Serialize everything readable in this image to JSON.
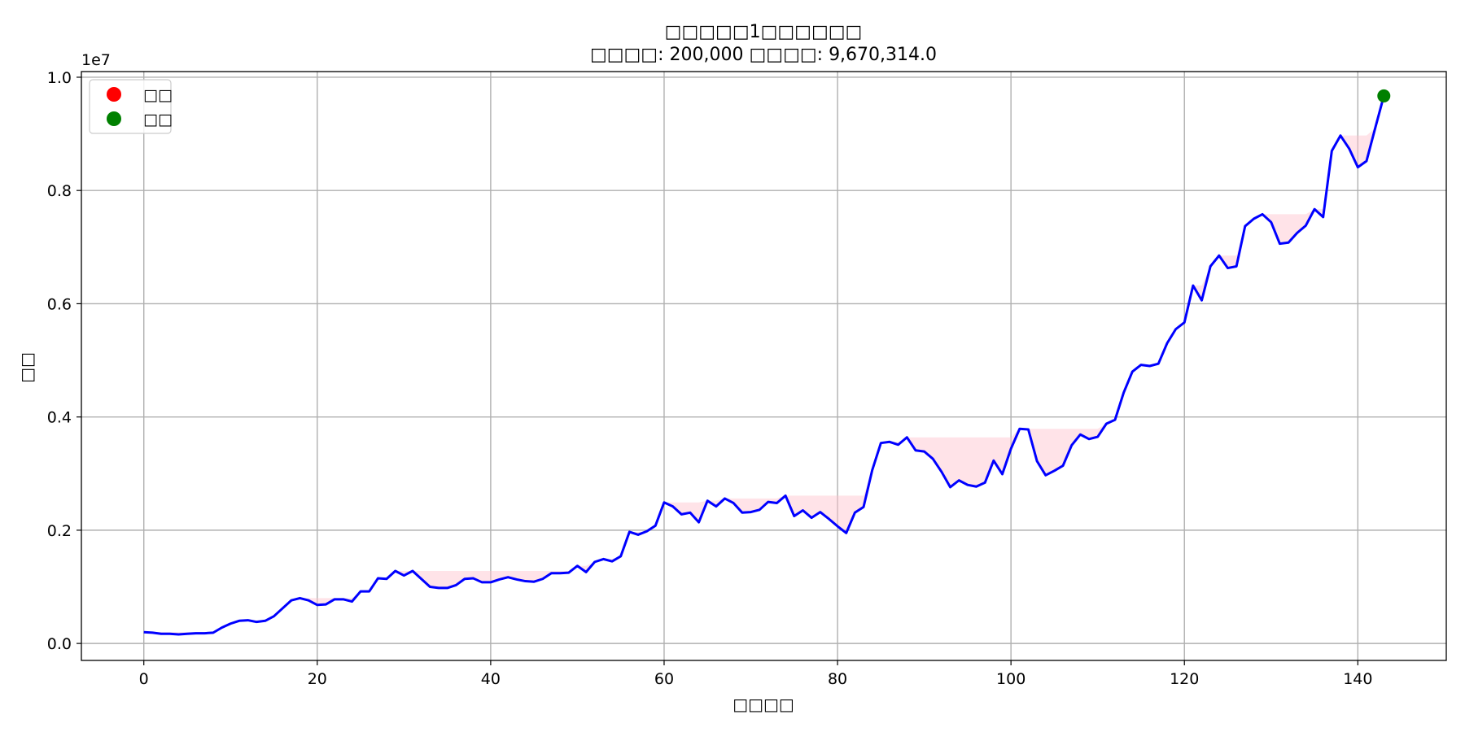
{
  "chart_data": {
    "type": "line",
    "title": "□□□□□1□□□□□□",
    "subtitle_parts": {
      "initial_label": "□□□□",
      "initial_value": "200,000",
      "final_label": "□□□□",
      "final_value": "9,670,314.0"
    },
    "xlabel": "□□□□",
    "ylabel": "□□",
    "y_offset_text": "1e7",
    "xlim": [
      -7.2,
      150.2
    ],
    "ylim": [
      -0.03,
      1.01
    ],
    "x_ticks": [
      0,
      20,
      40,
      60,
      80,
      100,
      120,
      140
    ],
    "x_tick_labels": [
      "0",
      "20",
      "40",
      "60",
      "80",
      "100",
      "120",
      "140"
    ],
    "y_ticks": [
      0.0,
      0.2,
      0.4,
      0.6,
      0.8,
      1.0
    ],
    "y_tick_labels": [
      "0.0",
      "0.2",
      "0.4",
      "0.6",
      "0.8",
      "1.0"
    ],
    "grid": true,
    "legend_position": "upper-left",
    "legend": [
      {
        "label": "□□",
        "color": "#ff0000"
      },
      {
        "label": "□□",
        "color": "#008000"
      }
    ],
    "line_color": "#0000ff",
    "drawdown_fill_color": "#ffc0cb",
    "end_marker": {
      "x": 143,
      "y": 0.967,
      "color": "#008000"
    },
    "series": [
      {
        "values": [
          0.02,
          0.019,
          0.017,
          0.017,
          0.016,
          0.017,
          0.018,
          0.018,
          0.019,
          0.028,
          0.035,
          0.04,
          0.041,
          0.038,
          0.04,
          0.048,
          0.062,
          0.076,
          0.08,
          0.076,
          0.068,
          0.069,
          0.078,
          0.078,
          0.074,
          0.092,
          0.092,
          0.115,
          0.114,
          0.128,
          0.12,
          0.128,
          0.114,
          0.1,
          0.098,
          0.098,
          0.103,
          0.114,
          0.115,
          0.108,
          0.108,
          0.113,
          0.117,
          0.113,
          0.11,
          0.109,
          0.114,
          0.124,
          0.124,
          0.125,
          0.137,
          0.126,
          0.144,
          0.149,
          0.145,
          0.154,
          0.197,
          0.192,
          0.198,
          0.208,
          0.249,
          0.242,
          0.228,
          0.231,
          0.214,
          0.252,
          0.242,
          0.256,
          0.248,
          0.231,
          0.232,
          0.236,
          0.25,
          0.248,
          0.261,
          0.225,
          0.235,
          0.222,
          0.232,
          0.22,
          0.207,
          0.195,
          0.231,
          0.241,
          0.306,
          0.354,
          0.356,
          0.351,
          0.364,
          0.341,
          0.339,
          0.326,
          0.303,
          0.276,
          0.288,
          0.28,
          0.277,
          0.284,
          0.323,
          0.299,
          0.344,
          0.379,
          0.378,
          0.322,
          0.297,
          0.305,
          0.314,
          0.35,
          0.369,
          0.361,
          0.365,
          0.388,
          0.395,
          0.443,
          0.48,
          0.492,
          0.49,
          0.494,
          0.53,
          0.555,
          0.567,
          0.632,
          0.606,
          0.666,
          0.685,
          0.663,
          0.666,
          0.737,
          0.75,
          0.758,
          0.744,
          0.706,
          0.708,
          0.725,
          0.738,
          0.767,
          0.753,
          0.87,
          0.897,
          0.874,
          0.841,
          0.852,
          0.91,
          0.967
        ]
      }
    ]
  }
}
